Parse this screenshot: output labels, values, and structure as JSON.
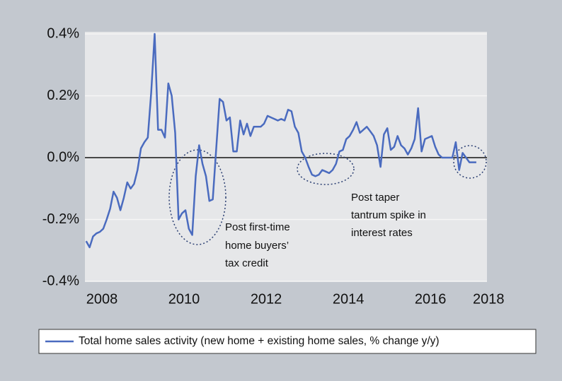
{
  "chart_data": {
    "type": "line",
    "series": [
      {
        "name": "Total home sales activity (new home + existing home sales, % change y/y)",
        "color": "#4a6bbf",
        "x": [
          2008,
          2008.083,
          2008.167,
          2008.25,
          2008.333,
          2008.417,
          2008.5,
          2008.583,
          2008.667,
          2008.75,
          2008.833,
          2008.917,
          2009,
          2009.083,
          2009.167,
          2009.25,
          2009.333,
          2009.417,
          2009.5,
          2009.583,
          2009.667,
          2009.75,
          2009.833,
          2009.917,
          2010,
          2010.083,
          2010.167,
          2010.25,
          2010.333,
          2010.417,
          2010.5,
          2010.583,
          2010.667,
          2010.75,
          2010.833,
          2010.917,
          2011,
          2011.083,
          2011.167,
          2011.25,
          2011.333,
          2011.417,
          2011.5,
          2011.583,
          2011.667,
          2011.75,
          2011.833,
          2011.917,
          2012,
          2012.083,
          2012.167,
          2012.25,
          2012.333,
          2012.417,
          2012.5,
          2012.583,
          2012.667,
          2012.75,
          2012.833,
          2012.917,
          2013,
          2013.083,
          2013.167,
          2013.25,
          2013.333,
          2013.417,
          2013.5,
          2013.583,
          2013.667,
          2013.75,
          2013.833,
          2013.917,
          2014,
          2014.083,
          2014.167,
          2014.25,
          2014.333,
          2014.417,
          2014.5,
          2014.583,
          2014.667,
          2014.75,
          2014.833,
          2014.917,
          2015,
          2015.083,
          2015.167,
          2015.25,
          2015.333,
          2015.417,
          2015.5,
          2015.583,
          2015.667,
          2015.75,
          2015.833,
          2015.917,
          2016,
          2016.083,
          2016.167,
          2016.25,
          2016.333,
          2016.417,
          2016.5,
          2016.583,
          2016.667,
          2016.75,
          2016.833,
          2016.917,
          2017,
          2017.083,
          2017.167,
          2017.25,
          2017.333,
          2017.417,
          2017.5
        ],
        "values": [
          -0.27,
          -0.29,
          -0.255,
          -0.245,
          -0.24,
          -0.23,
          -0.2,
          -0.165,
          -0.11,
          -0.13,
          -0.17,
          -0.13,
          -0.08,
          -0.1,
          -0.085,
          -0.04,
          0.03,
          0.05,
          0.065,
          0.21,
          0.4,
          0.09,
          0.09,
          0.065,
          0.24,
          0.2,
          0.08,
          -0.2,
          -0.18,
          -0.17,
          -0.23,
          -0.25,
          -0.06,
          0.04,
          -0.02,
          -0.06,
          -0.14,
          -0.135,
          0.03,
          0.19,
          0.18,
          0.12,
          0.13,
          0.02,
          0.02,
          0.12,
          0.075,
          0.11,
          0.07,
          0.1,
          0.1,
          0.1,
          0.11,
          0.135,
          0.13,
          0.125,
          0.12,
          0.125,
          0.12,
          0.155,
          0.15,
          0.1,
          0.08,
          0.02,
          0.0,
          -0.03,
          -0.055,
          -0.06,
          -0.055,
          -0.04,
          -0.045,
          -0.05,
          -0.04,
          -0.02,
          0.02,
          0.025,
          0.06,
          0.07,
          0.09,
          0.115,
          0.08,
          0.09,
          0.1,
          0.085,
          0.07,
          0.04,
          -0.03,
          0.075,
          0.095,
          0.025,
          0.035,
          0.07,
          0.04,
          0.03,
          0.01,
          0.03,
          0.06,
          0.16,
          0.02,
          0.06,
          0.065,
          0.07,
          0.035,
          0.01,
          0.0,
          0.0,
          0.0,
          0.0,
          0.05,
          -0.04,
          0.015,
          0.0,
          -0.015,
          -0.015,
          -0.015
        ]
      }
    ],
    "xlim": [
      2007.97,
      2017.76
    ],
    "xticks": [
      2008,
      2010,
      2012,
      2014,
      2016,
      2018
    ],
    "ylim": [
      -0.4,
      0.4
    ],
    "yticks": [
      {
        "value": -0.4,
        "label": "-0.4%"
      },
      {
        "value": -0.2,
        "label": "-0.2%"
      },
      {
        "value": 0,
        "label": "0.0%"
      },
      {
        "value": 0.2,
        "label": "0.2%"
      },
      {
        "value": 0.4,
        "label": "0.4%"
      }
    ],
    "grid": true,
    "annotations": [
      {
        "lines": [
          "Post first-time",
          "home buyers’",
          "tax credit"
        ]
      },
      {
        "lines": [
          "Post taper",
          "tantrum spike in",
          "interest rates"
        ]
      }
    ]
  }
}
